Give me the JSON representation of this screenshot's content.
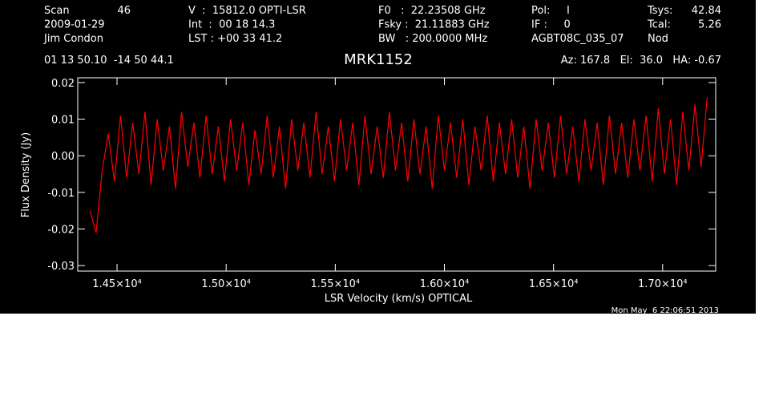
{
  "header": {
    "rows": [
      [
        "Scan",
        "46",
        "V  :  15812.0 OPTI-LSR",
        "F0   :  22.23508 GHz",
        "Pol:     I",
        "Tsys:",
        "42.84"
      ],
      [
        "2009-01-29",
        "",
        "Int  :  00 18 14.3",
        "Fsky :  21.11883 GHz",
        "IF :     0",
        "Tcal:",
        "5.26"
      ],
      [
        "Jim Condon",
        "",
        "LST : +00 33 41.2",
        "BW   : 200.0000 MHz",
        "AGBT08C_035_07",
        "Nod",
        ""
      ]
    ],
    "coords": "01 13 50.10  -14 50 44.1",
    "source": "MRK1152",
    "pointing": "Az: 167.8   El:  36.0   HA: -0.67",
    "timestamp": "Mon May  6 22:06:51 2013"
  },
  "chart_data": {
    "type": "line",
    "x_label": "LSR Velocity (km/s) OPTICAL",
    "y_label": "Flux Density (Jy)",
    "xlim": [
      14320,
      17243
    ],
    "ylim": [
      -0.0315,
      0.0213
    ],
    "xticks": [
      {
        "value": 14500,
        "label": "1.45×10⁴"
      },
      {
        "value": 15000,
        "label": "1.50×10⁴"
      },
      {
        "value": 15500,
        "label": "1.55×10⁴"
      },
      {
        "value": 16000,
        "label": "1.60×10⁴"
      },
      {
        "value": 16500,
        "label": "1.65×10⁴"
      },
      {
        "value": 17000,
        "label": "1.70×10⁴"
      }
    ],
    "yticks": [
      0.02,
      0.01,
      {
        "value": 0,
        "label": "0.00"
      },
      -0.01,
      -0.02,
      -0.03
    ],
    "series": [
      {
        "color": "#ff0000",
        "x": [
          14376,
          14404,
          14432,
          14460,
          14488,
          14516,
          14544,
          14572,
          14600,
          14628,
          14656,
          14684,
          14712,
          14740,
          14768,
          14796,
          14824,
          14852,
          14880,
          14908,
          14936,
          14964,
          14992,
          15020,
          15048,
          15076,
          15104,
          15132,
          15160,
          15188,
          15216,
          15244,
          15272,
          15300,
          15328,
          15356,
          15384,
          15412,
          15440,
          15468,
          15496,
          15524,
          15552,
          15580,
          15608,
          15636,
          15664,
          15692,
          15720,
          15748,
          15776,
          15804,
          15832,
          15860,
          15888,
          15916,
          15944,
          15972,
          16000,
          16028,
          16056,
          16084,
          16112,
          16140,
          16168,
          16196,
          16224,
          16252,
          16280,
          16308,
          16336,
          16364,
          16392,
          16420,
          16448,
          16476,
          16504,
          16532,
          16560,
          16588,
          16616,
          16644,
          16672,
          16700,
          16728,
          16756,
          16784,
          16812,
          16840,
          16868,
          16896,
          16924,
          16952,
          16980,
          17008,
          17036,
          17064,
          17092,
          17120,
          17148,
          17176,
          17204
        ],
        "values": [
          -0.015,
          -0.021,
          -0.004,
          0.006,
          -0.007,
          0.011,
          -0.006,
          0.009,
          -0.005,
          0.012,
          -0.008,
          0.01,
          -0.004,
          0.008,
          -0.009,
          0.012,
          -0.003,
          0.009,
          -0.006,
          0.011,
          -0.005,
          0.008,
          -0.007,
          0.01,
          -0.004,
          0.009,
          -0.008,
          0.007,
          -0.005,
          0.011,
          -0.006,
          0.008,
          -0.009,
          0.01,
          -0.004,
          0.009,
          -0.006,
          0.012,
          -0.005,
          0.008,
          -0.007,
          0.01,
          -0.004,
          0.009,
          -0.008,
          0.011,
          -0.005,
          0.008,
          -0.006,
          0.012,
          -0.004,
          0.009,
          -0.007,
          0.01,
          -0.005,
          0.008,
          -0.009,
          0.011,
          -0.004,
          0.009,
          -0.006,
          0.01,
          -0.008,
          0.008,
          -0.004,
          0.011,
          -0.007,
          0.009,
          -0.005,
          0.01,
          -0.006,
          0.008,
          -0.009,
          0.01,
          -0.004,
          0.009,
          -0.006,
          0.011,
          -0.005,
          0.008,
          -0.007,
          0.01,
          -0.004,
          0.009,
          -0.008,
          0.011,
          -0.005,
          0.009,
          -0.006,
          0.01,
          -0.004,
          0.011,
          -0.007,
          0.013,
          -0.005,
          0.01,
          -0.008,
          0.012,
          -0.004,
          0.014,
          -0.003,
          0.016
        ]
      }
    ]
  }
}
